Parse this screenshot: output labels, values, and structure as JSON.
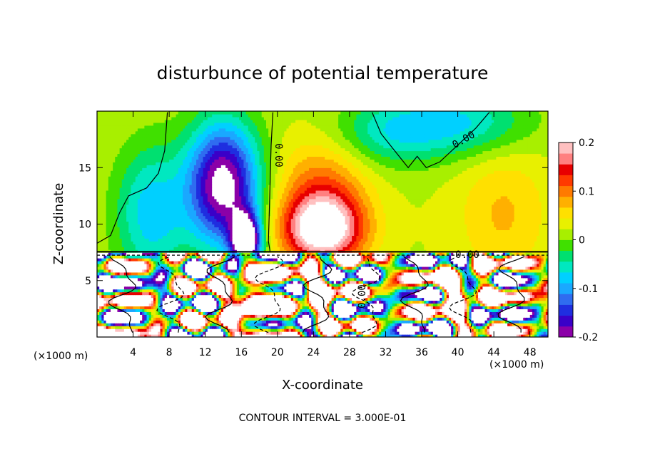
{
  "chart_data": {
    "type": "heatmap",
    "title": "disturbunce of potential temperature",
    "xlabel": "X-coordinate",
    "ylabel": "Z-coordinate",
    "x_unit_left": "(×1000 m)",
    "x_unit_right": "(×1000 m)",
    "xlim": [
      0,
      50
    ],
    "ylim": [
      0,
      20
    ],
    "x_ticks": [
      4,
      8,
      12,
      16,
      20,
      24,
      28,
      32,
      36,
      40,
      44,
      48
    ],
    "y_ticks": [
      5,
      10,
      15
    ],
    "colorbar": {
      "range": [
        -0.2,
        0.2
      ],
      "ticks": [
        "0.2",
        "0.1",
        "0",
        "-0.1",
        "-0.2"
      ],
      "tick_values": [
        0.2,
        0.1,
        0,
        -0.1,
        -0.2
      ],
      "colors": [
        "#8b00a8",
        "#3a00c8",
        "#1f2ee0",
        "#2f6cf0",
        "#1aa8ff",
        "#00d0ff",
        "#00e8c0",
        "#00e070",
        "#40e000",
        "#a8ef00",
        "#e8f000",
        "#ffe000",
        "#ffb000",
        "#ff7a00",
        "#ff3a00",
        "#e80000",
        "#ff8080",
        "#ffc0c0"
      ]
    },
    "contour_labels": [
      "0.00",
      "0.00",
      "0.00",
      "0.00"
    ],
    "grid": false,
    "annotation": "CONTOUR INTERVAL = 3.000E-01"
  }
}
